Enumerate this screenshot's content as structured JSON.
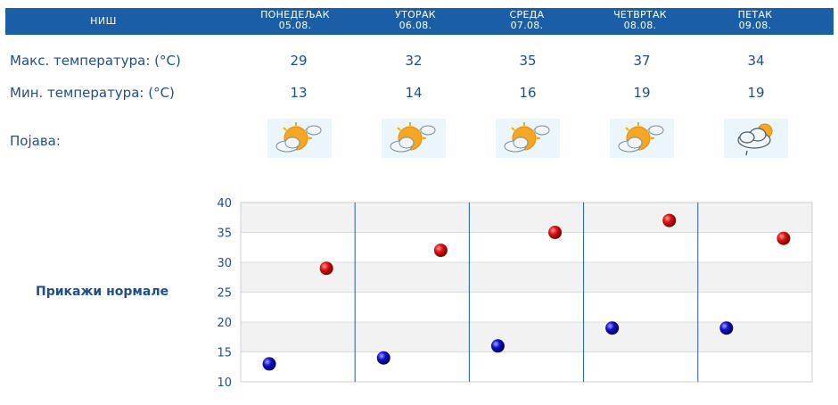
{
  "city": "НИШ",
  "days": [
    {
      "name": "ПОНЕДЕЉАК",
      "date": "05.08.",
      "max": "29",
      "min": "13",
      "icon": "sun-behind-cloud-icon"
    },
    {
      "name": "УТОРАК",
      "date": "06.08.",
      "max": "32",
      "min": "14",
      "icon": "sun-behind-cloud-icon"
    },
    {
      "name": "СРЕДА",
      "date": "07.08.",
      "max": "35",
      "min": "16",
      "icon": "sun-behind-cloud-icon"
    },
    {
      "name": "ЧЕТВРТАК",
      "date": "08.08.",
      "max": "37",
      "min": "19",
      "icon": "sun-behind-cloud-icon"
    },
    {
      "name": "ПЕТАК",
      "date": "09.08.",
      "max": "34",
      "min": "19",
      "icon": "cloud-with-rain-icon"
    }
  ],
  "labels": {
    "max": "Макс. температура: (°C)",
    "min": "Мин. температура: (°C)",
    "phenomenon": "Појава:"
  },
  "show_normals": "Прикажи нормале",
  "colors": {
    "header": "#1a5ea8",
    "text": "#1f4e8c",
    "max_dot": "#cc0000",
    "min_dot": "#0000aa"
  },
  "chart_data": {
    "type": "scatter",
    "categories": [
      "05.08.",
      "06.08.",
      "07.08.",
      "08.08.",
      "09.08."
    ],
    "series": [
      {
        "values": [
          29,
          32,
          35,
          37,
          34
        ]
      },
      {
        "values": [
          13,
          14,
          16,
          19,
          19
        ]
      }
    ],
    "ylim": [
      10,
      40
    ],
    "yticks": [
      "40",
      "35",
      "30",
      "25",
      "20",
      "15",
      "10"
    ],
    "grid": true
  }
}
